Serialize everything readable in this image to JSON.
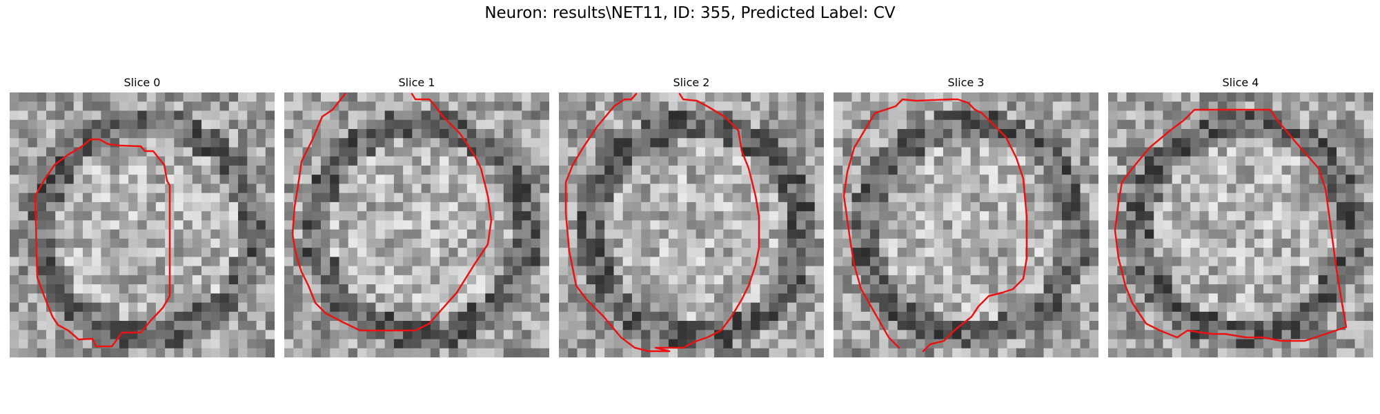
{
  "figure": {
    "title": "Neuron: results\\NET11, ID: 355, Predicted Label: CV"
  },
  "panels": [
    {
      "title": "Slice 0"
    },
    {
      "title": "Slice 1"
    },
    {
      "title": "Slice 2"
    },
    {
      "title": "Slice 3"
    },
    {
      "title": "Slice 4"
    }
  ],
  "colors": {
    "contour": "#ee1111",
    "background": "#ffffff"
  }
}
